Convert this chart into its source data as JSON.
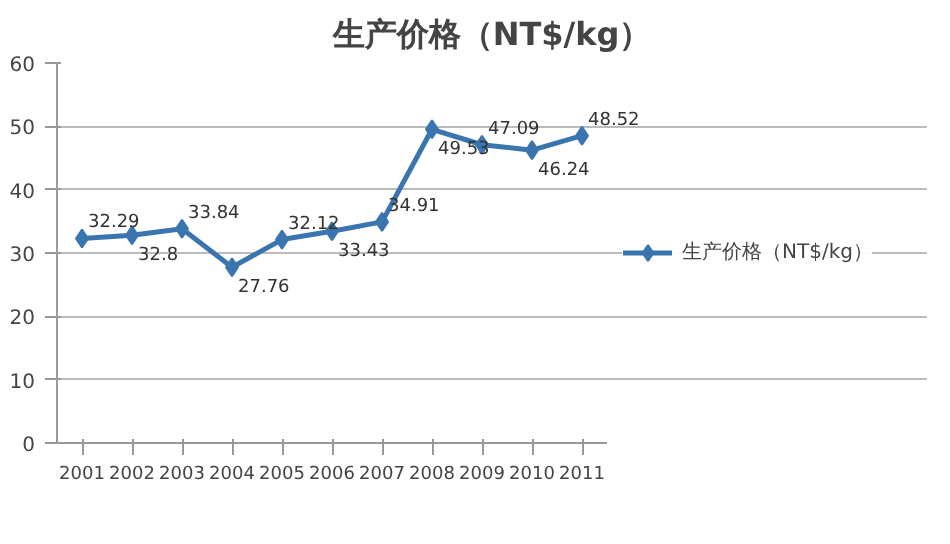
{
  "chart_data": {
    "type": "line",
    "title": "生产价格（NT$/kg）",
    "categories": [
      "2001",
      "2002",
      "2003",
      "2004",
      "2005",
      "2006",
      "2007",
      "2008",
      "2009",
      "2010",
      "2011"
    ],
    "series": [
      {
        "name": "生产价格（NT$/kg）",
        "color": "#3a75b0",
        "values": [
          32.29,
          32.8,
          33.84,
          27.76,
          32.12,
          33.43,
          34.91,
          49.53,
          47.09,
          46.24,
          48.52
        ]
      }
    ],
    "ylim": [
      0,
      60
    ],
    "yticks": [
      0,
      10,
      20,
      30,
      40,
      50,
      60
    ],
    "grid": "y",
    "legend": "right",
    "marker": "diamond",
    "line_style": "solid",
    "data_labels": true
  }
}
